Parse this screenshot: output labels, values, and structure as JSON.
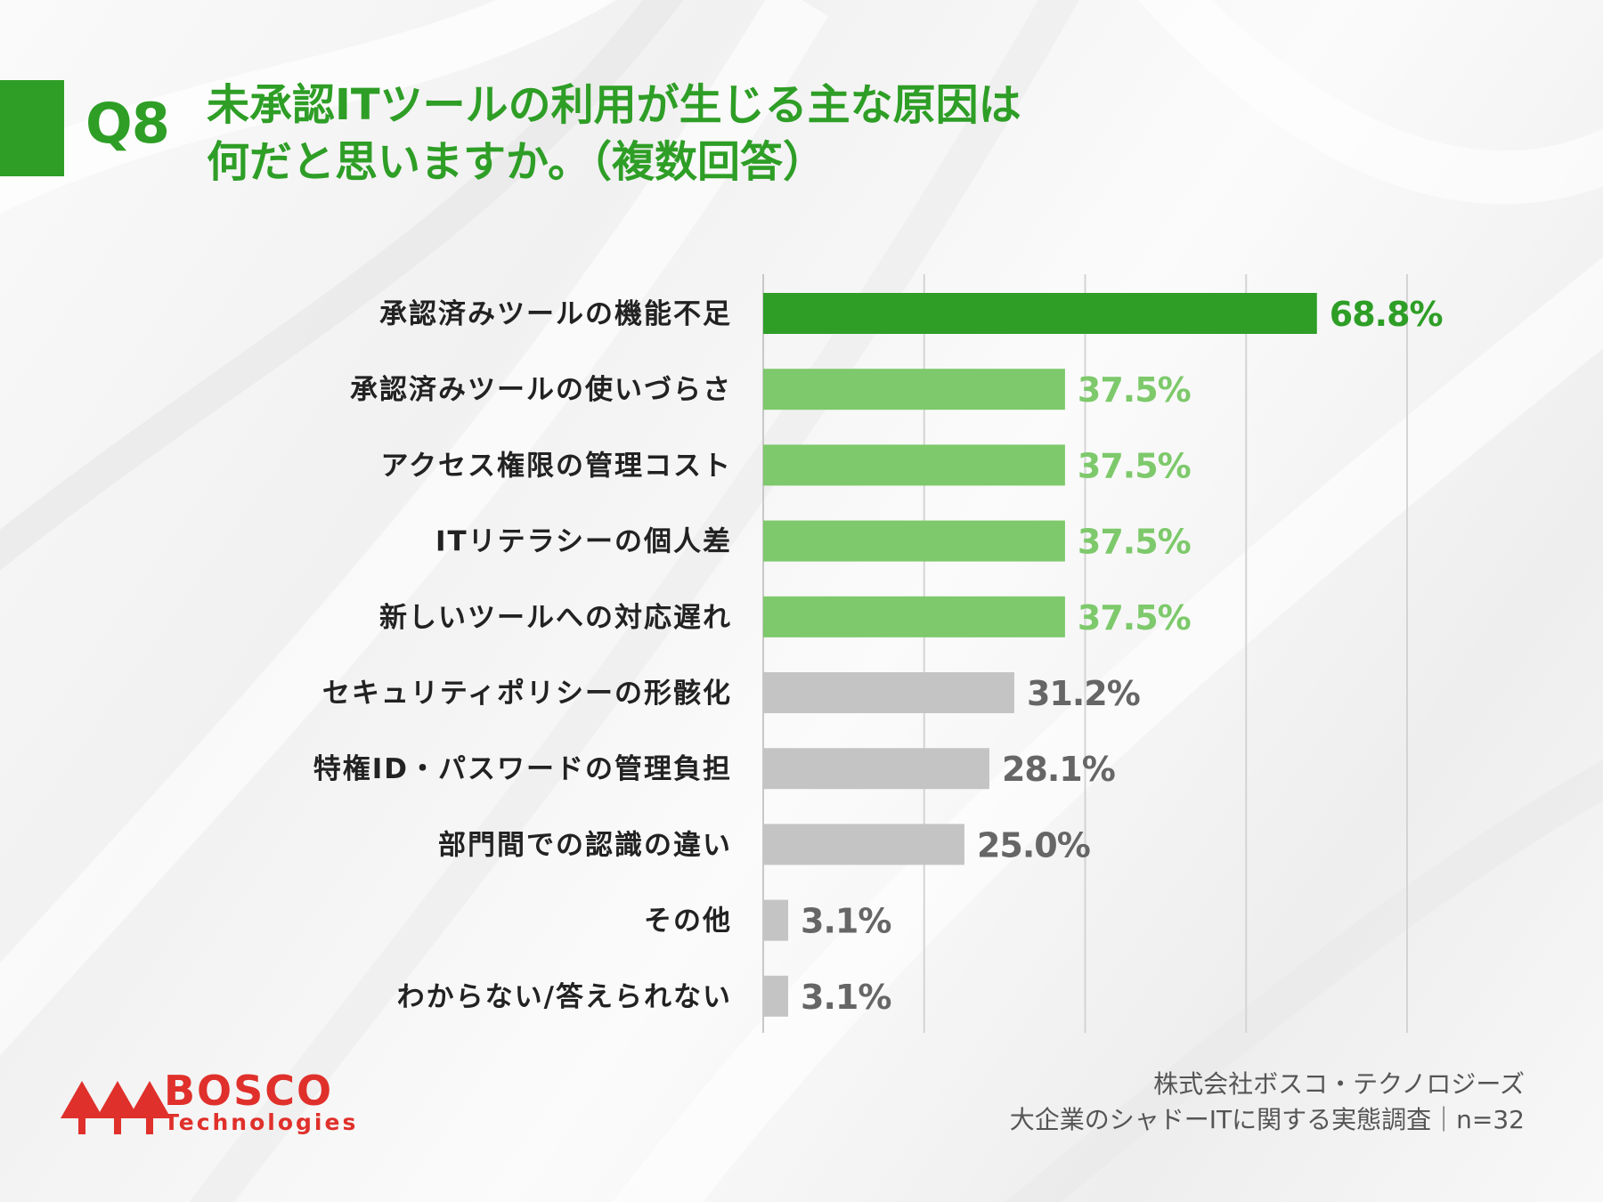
{
  "header": {
    "question_number": "Q8",
    "title_line1": "未承認ITツールの利用が生じる主な原因は",
    "title_line2": "何だと思いますか。（複数回答）"
  },
  "colors": {
    "brand_green": "#2e9e26",
    "light_green": "#7dc96b",
    "gray": "#c4c4c4",
    "gray_text": "#666666",
    "logo_red": "#e0302b"
  },
  "chart_data": {
    "type": "bar",
    "orientation": "horizontal",
    "categories": [
      "承認済みツールの機能不足",
      "承認済みツールの使いづらさ",
      "アクセス権限の管理コスト",
      "ITリテラシーの個人差",
      "新しいツールへの対応遅れ",
      "セキュリティポリシーの形骸化",
      "特権ID・パスワードの管理負担",
      "部門間での認識の違い",
      "その他",
      "わからない/答えられない"
    ],
    "values": [
      68.8,
      37.5,
      37.5,
      37.5,
      37.5,
      31.2,
      28.1,
      25.0,
      3.1,
      3.1
    ],
    "value_labels": [
      "68.8%",
      "37.5%",
      "37.5%",
      "37.5%",
      "37.5%",
      "31.2%",
      "28.1%",
      "25.0%",
      "3.1%",
      "3.1%"
    ],
    "bar_color_groups": [
      "highlight",
      "green",
      "green",
      "green",
      "green",
      "gray",
      "gray",
      "gray",
      "gray",
      "gray"
    ],
    "xlim": [
      0,
      80
    ],
    "gridlines": [
      0,
      20,
      40,
      60,
      80
    ],
    "grid": true,
    "xlabel": "",
    "ylabel": ""
  },
  "footer": {
    "company": "株式会社ボスコ・テクノロジーズ",
    "survey": "大企業のシャドーITに関する実態調査｜n=32"
  },
  "logo": {
    "name": "BOSCO",
    "sub": "Technologies"
  }
}
